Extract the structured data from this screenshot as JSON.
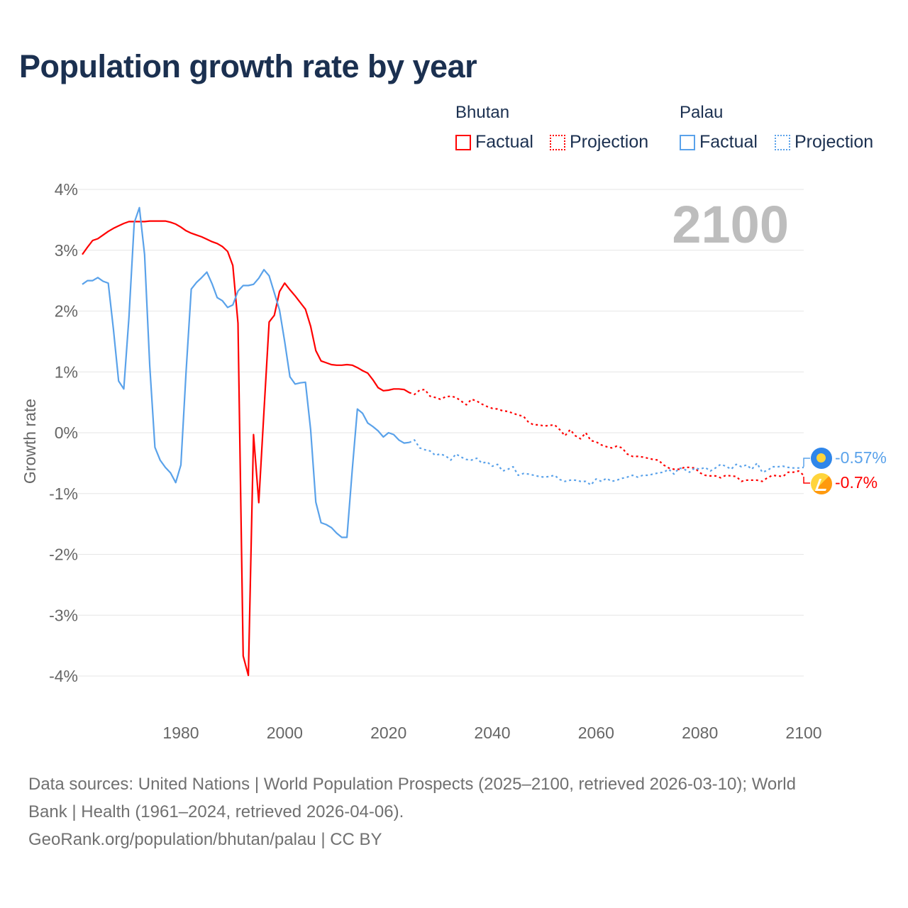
{
  "title": "Population growth rate by year",
  "legend": {
    "groups": [
      {
        "name": "Bhutan",
        "factual": "Factual",
        "projection": "Projection",
        "color": "#ff0000"
      },
      {
        "name": "Palau",
        "factual": "Factual",
        "projection": "Projection",
        "color": "#5aa2ea"
      }
    ]
  },
  "year_label": "2100",
  "end_labels": {
    "palau": "-0.57%",
    "bhutan": "-0.7%"
  },
  "icons": {
    "palau": "palau-flag-icon",
    "bhutan": "bhutan-flag-icon"
  },
  "footer": {
    "line1": "Data sources: United Nations | World Population Prospects (2025–2100, retrieved 2026-03-10); World",
    "line2": "Bank | Health (1961–2024, retrieved 2026-04-06).",
    "line3": "GeoRank.org/population/bhutan/palau | CC BY"
  },
  "chart_data": {
    "type": "line",
    "title": "Population growth rate by year",
    "xlabel": "",
    "ylabel": "Growth rate",
    "xlim": [
      1961,
      2100
    ],
    "ylim": [
      -4,
      4
    ],
    "xticks": [
      "1980",
      "2000",
      "2020",
      "2040",
      "2060",
      "2080",
      "2100"
    ],
    "yticks": [
      "4%",
      "3%",
      "2%",
      "1%",
      "0%",
      "-1%",
      "-2%",
      "-3%",
      "-4%"
    ],
    "grid": true,
    "legend_position": "top-right",
    "series": [
      {
        "name": "Bhutan",
        "kind": "Factual",
        "color": "#ff0000",
        "start_year": 1961,
        "values": [
          2.93,
          3.05,
          3.16,
          3.19,
          3.25,
          3.31,
          3.36,
          3.4,
          3.44,
          3.47,
          3.47,
          3.47,
          3.47,
          3.48,
          3.48,
          3.48,
          3.48,
          3.46,
          3.43,
          3.38,
          3.32,
          3.28,
          3.25,
          3.22,
          3.18,
          3.14,
          3.11,
          3.06,
          2.98,
          2.75,
          1.8,
          -3.67,
          -3.99,
          -0.03,
          -1.15,
          0.35,
          1.82,
          1.93,
          2.32,
          2.46,
          2.35,
          2.25,
          2.14,
          2.03,
          1.75,
          1.35,
          1.18,
          1.15,
          1.12,
          1.11,
          1.11,
          1.12,
          1.11,
          1.07,
          1.02,
          0.98,
          0.87,
          0.74,
          0.69,
          0.7,
          0.72,
          0.72,
          0.71,
          0.66
        ]
      },
      {
        "name": "Bhutan",
        "kind": "Projection",
        "color": "#ff0000",
        "start_year": 2025,
        "values": [
          0.63,
          0.7,
          0.71,
          0.6,
          0.58,
          0.55,
          0.59,
          0.6,
          0.58,
          0.52,
          0.46,
          0.55,
          0.52,
          0.47,
          0.43,
          0.4,
          0.39,
          0.36,
          0.35,
          0.32,
          0.29,
          0.27,
          0.17,
          0.13,
          0.13,
          0.11,
          0.12,
          0.13,
          0.05,
          -0.05,
          0.05,
          -0.05,
          -0.1,
          0.0,
          -0.13,
          -0.15,
          -0.2,
          -0.23,
          -0.25,
          -0.22,
          -0.25,
          -0.35,
          -0.39,
          -0.39,
          -0.4,
          -0.42,
          -0.44,
          -0.45,
          -0.53,
          -0.58,
          -0.6,
          -0.6,
          -0.57,
          -0.57,
          -0.58,
          -0.66,
          -0.7,
          -0.71,
          -0.71,
          -0.74,
          -0.7,
          -0.71,
          -0.72,
          -0.8,
          -0.78,
          -0.78,
          -0.78,
          -0.8,
          -0.74,
          -0.7,
          -0.71,
          -0.72,
          -0.65,
          -0.65,
          -0.63,
          -0.7
        ]
      },
      {
        "name": "Palau",
        "kind": "Factual",
        "color": "#5aa2ea",
        "start_year": 1961,
        "values": [
          2.44,
          2.5,
          2.5,
          2.55,
          2.49,
          2.46,
          1.7,
          0.85,
          0.72,
          1.9,
          3.45,
          3.7,
          2.93,
          1.1,
          -0.24,
          -0.45,
          -0.57,
          -0.66,
          -0.82,
          -0.53,
          1.0,
          2.36,
          2.47,
          2.55,
          2.64,
          2.45,
          2.22,
          2.17,
          2.06,
          2.1,
          2.33,
          2.42,
          2.42,
          2.44,
          2.54,
          2.68,
          2.58,
          2.3,
          2.02,
          1.5,
          0.92,
          0.8,
          0.82,
          0.83,
          0.05,
          -1.14,
          -1.48,
          -1.51,
          -1.56,
          -1.65,
          -1.72,
          -1.72,
          -0.62,
          0.39,
          0.32,
          0.16,
          0.1,
          0.03,
          -0.07,
          0.0,
          -0.03,
          -0.12,
          -0.17,
          -0.16
        ]
      },
      {
        "name": "Palau",
        "kind": "Projection",
        "color": "#5aa2ea",
        "start_year": 2025,
        "values": [
          -0.12,
          -0.25,
          -0.28,
          -0.3,
          -0.37,
          -0.35,
          -0.38,
          -0.45,
          -0.35,
          -0.4,
          -0.44,
          -0.45,
          -0.42,
          -0.5,
          -0.48,
          -0.55,
          -0.52,
          -0.63,
          -0.6,
          -0.56,
          -0.7,
          -0.67,
          -0.68,
          -0.7,
          -0.72,
          -0.73,
          -0.72,
          -0.7,
          -0.77,
          -0.8,
          -0.78,
          -0.78,
          -0.8,
          -0.8,
          -0.86,
          -0.76,
          -0.8,
          -0.75,
          -0.8,
          -0.78,
          -0.75,
          -0.73,
          -0.7,
          -0.73,
          -0.7,
          -0.7,
          -0.68,
          -0.66,
          -0.65,
          -0.6,
          -0.68,
          -0.58,
          -0.6,
          -0.65,
          -0.58,
          -0.6,
          -0.57,
          -0.63,
          -0.58,
          -0.52,
          -0.55,
          -0.6,
          -0.52,
          -0.56,
          -0.53,
          -0.6,
          -0.5,
          -0.65,
          -0.62,
          -0.56,
          -0.56,
          -0.55,
          -0.57,
          -0.58,
          -0.58,
          -0.57
        ]
      }
    ]
  }
}
